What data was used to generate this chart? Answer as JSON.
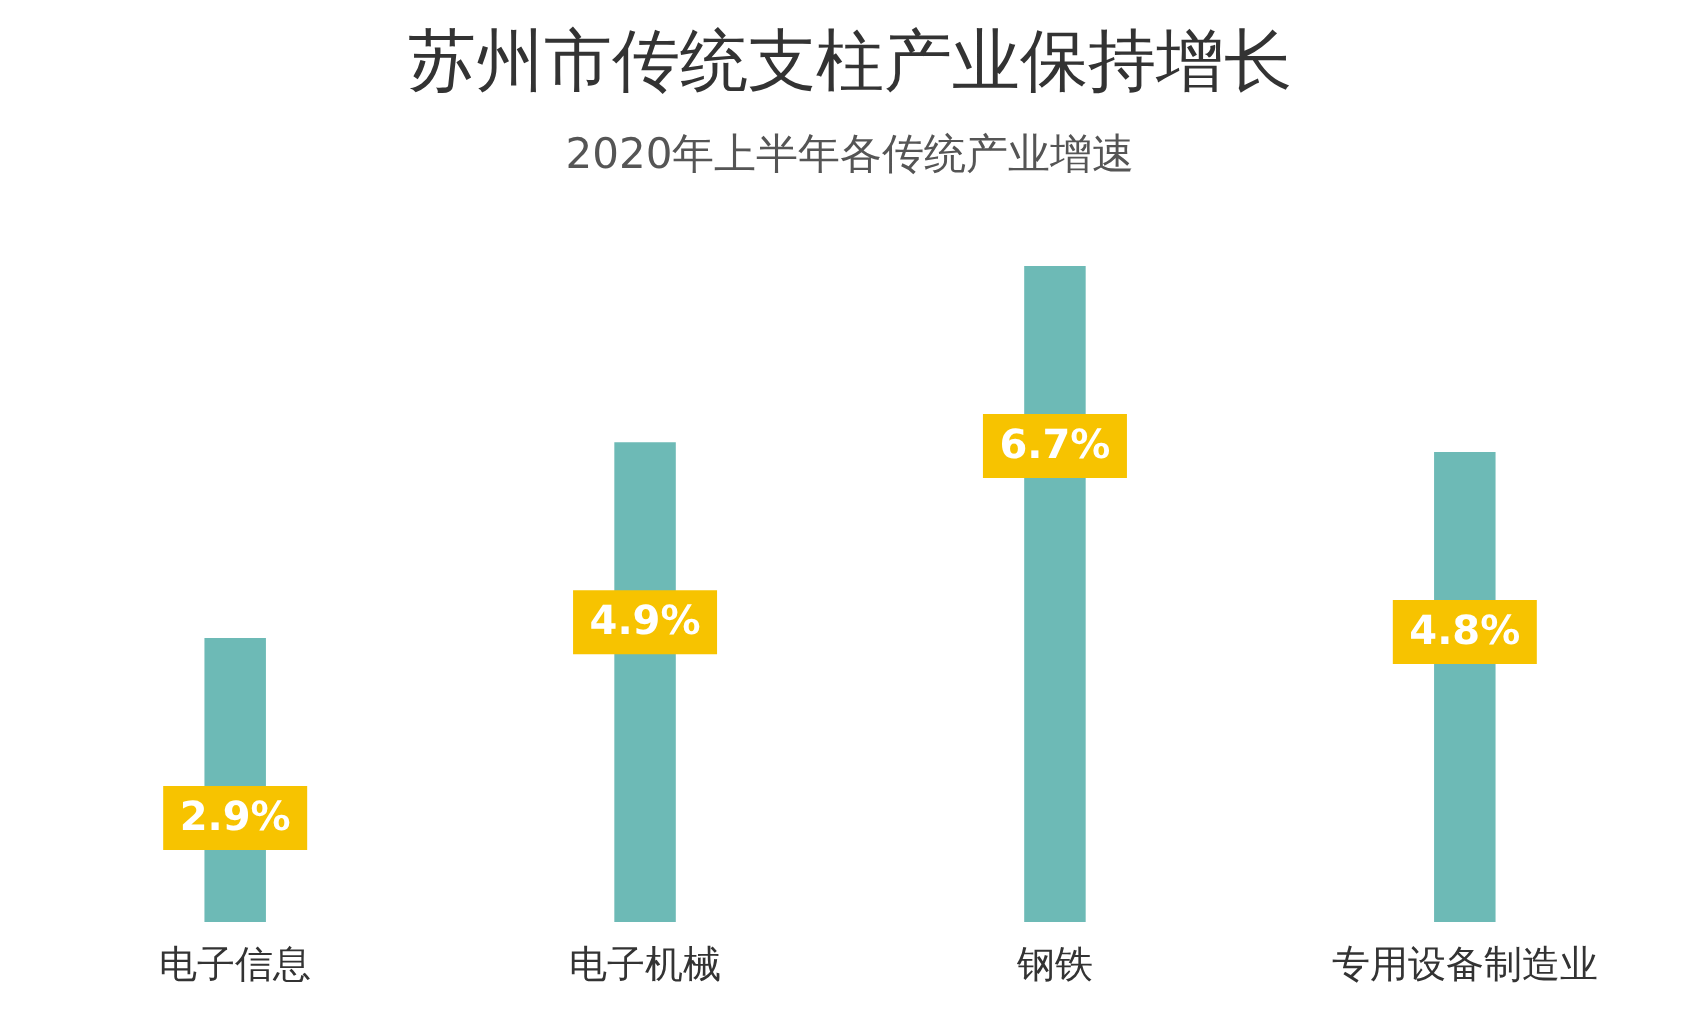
{
  "chart_data": {
    "type": "bar",
    "title": "苏州市传统支柱产业保持增长",
    "subtitle": "2020年上半年各传统产业增速",
    "categories": [
      "电子信息",
      "电子机械",
      "钢铁",
      "专用设备制造业"
    ],
    "values": [
      2.9,
      4.9,
      6.7,
      4.8
    ],
    "value_labels": [
      "2.9%",
      "4.9%",
      "6.7%",
      "4.8%"
    ],
    "color": "#6dbab6",
    "grid": false
  }
}
